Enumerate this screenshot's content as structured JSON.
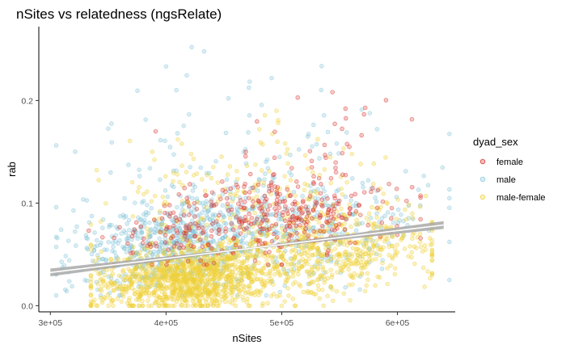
{
  "chart_data": {
    "type": "scatter",
    "title": "nSites vs relatedness (ngsRelate)",
    "xlabel": "nSites",
    "ylabel": "rab",
    "xlim": [
      290000,
      650000
    ],
    "ylim": [
      -0.006,
      0.272
    ],
    "x_ticks": [
      300000,
      400000,
      500000,
      600000
    ],
    "x_tick_labels": [
      "3e+05",
      "4e+05",
      "5e+05",
      "6e+05"
    ],
    "y_ticks": [
      0.0,
      0.1,
      0.2
    ],
    "y_tick_labels": [
      "0.0",
      "0.1",
      "0.2"
    ],
    "grid": false,
    "legend": {
      "title": "dyad_sex",
      "placement": "right"
    },
    "series": [
      {
        "name": "female",
        "color": "#d7261e",
        "fill_alpha": 0.25,
        "n_points": 420,
        "approx_center": {
          "x": 500000,
          "y": 0.085
        },
        "approx_x_range": [
          330000,
          620000
        ],
        "approx_y_range": [
          0.04,
          0.24
        ]
      },
      {
        "name": "male",
        "color": "#83c5d8",
        "fill_alpha": 0.3,
        "n_points": 1050,
        "approx_center": {
          "x": 440000,
          "y": 0.06
        },
        "approx_x_range": [
          305000,
          645000
        ],
        "approx_y_range": [
          0.01,
          0.262
        ]
      },
      {
        "name": "male-female",
        "color": "#f0d036",
        "fill_alpha": 0.3,
        "n_points": 1850,
        "approx_center": {
          "x": 450000,
          "y": 0.035
        },
        "approx_x_range": [
          335000,
          630000
        ],
        "approx_y_range": [
          0.0,
          0.19
        ]
      }
    ],
    "trend": {
      "method": "linear",
      "color": "#ffffff",
      "band_color": "#a9a9a9",
      "points": [
        {
          "x": 290000,
          "y": 0.031
        },
        {
          "x": 650000,
          "y": 0.08
        }
      ],
      "band_halfwidth": [
        0.004,
        0.0008,
        0.004
      ]
    }
  }
}
